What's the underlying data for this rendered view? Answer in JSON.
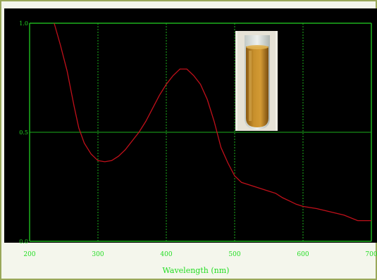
{
  "chart_data": {
    "type": "line",
    "title": "",
    "xlabel": "Wavelength (nm)",
    "ylabel": "",
    "xlim": [
      200,
      700
    ],
    "ylim": [
      0.0,
      1.0
    ],
    "x_ticks": [
      "200",
      "300",
      "400",
      "500",
      "600",
      "700"
    ],
    "y_ticks": [
      "0.0",
      "0.5",
      "1.0"
    ],
    "grid": true,
    "colors": {
      "line": "#c0101a",
      "grid": "#1db11d",
      "tick": "#22dd22",
      "background": "#000000"
    },
    "inset_image": "test-tube-with-amber-liquid",
    "series": [
      {
        "values": [
          [
            236,
            1.0
          ],
          [
            245,
            0.9
          ],
          [
            255,
            0.78
          ],
          [
            265,
            0.62
          ],
          [
            272,
            0.52
          ],
          [
            280,
            0.45
          ],
          [
            290,
            0.4
          ],
          [
            300,
            0.37
          ],
          [
            310,
            0.365
          ],
          [
            320,
            0.37
          ],
          [
            330,
            0.39
          ],
          [
            340,
            0.42
          ],
          [
            350,
            0.46
          ],
          [
            360,
            0.5
          ],
          [
            370,
            0.55
          ],
          [
            380,
            0.61
          ],
          [
            390,
            0.67
          ],
          [
            400,
            0.72
          ],
          [
            410,
            0.76
          ],
          [
            420,
            0.79
          ],
          [
            430,
            0.79
          ],
          [
            440,
            0.76
          ],
          [
            450,
            0.72
          ],
          [
            460,
            0.65
          ],
          [
            470,
            0.55
          ],
          [
            480,
            0.43
          ],
          [
            490,
            0.36
          ],
          [
            500,
            0.3
          ],
          [
            510,
            0.27
          ],
          [
            520,
            0.26
          ],
          [
            530,
            0.25
          ],
          [
            540,
            0.24
          ],
          [
            550,
            0.23
          ],
          [
            560,
            0.22
          ],
          [
            570,
            0.2
          ],
          [
            580,
            0.185
          ],
          [
            590,
            0.17
          ],
          [
            600,
            0.16
          ],
          [
            620,
            0.15
          ],
          [
            640,
            0.135
          ],
          [
            660,
            0.12
          ],
          [
            680,
            0.095
          ],
          [
            700,
            0.095
          ]
        ]
      }
    ]
  }
}
